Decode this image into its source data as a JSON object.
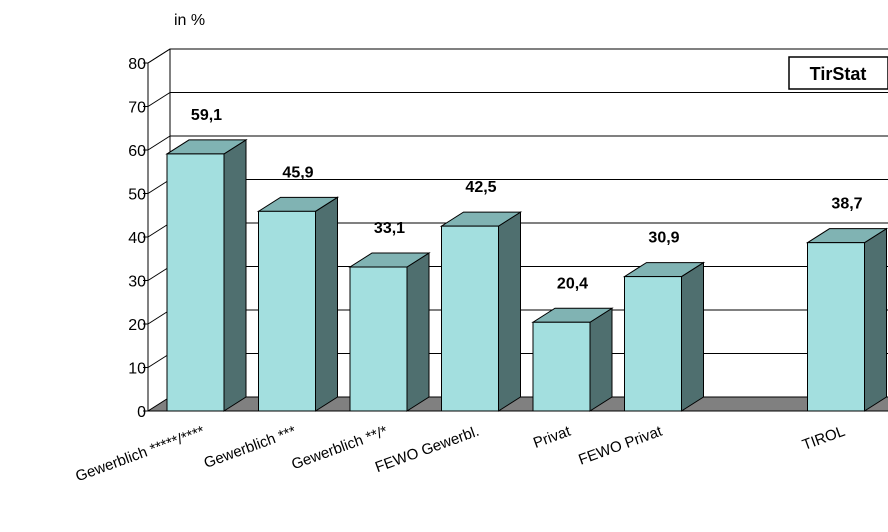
{
  "chart_data": {
    "type": "bar",
    "unit_label": "in %",
    "badge": "TirStat",
    "categories": [
      "Gewerblich *****/****",
      "Gewerblich ***",
      "Gewerblich **/*",
      "FEWO Gewerbl.",
      "Privat",
      "FEWO Privat",
      "",
      "TIROL"
    ],
    "values": [
      59.1,
      45.9,
      33.1,
      42.5,
      20.4,
      30.9,
      null,
      38.7
    ],
    "value_labels": [
      "59,1",
      "45,9",
      "33,1",
      "42,5",
      "20,4",
      "30,9",
      "",
      "38,7"
    ],
    "y_ticks": [
      "0",
      "10",
      "20",
      "30",
      "40",
      "50",
      "60",
      "70",
      "80"
    ],
    "ylim": [
      0,
      80
    ],
    "grid": true,
    "legend": "none",
    "style": "3d",
    "colors": {
      "front": "#a3dfdf",
      "side": "#4f6f6f",
      "top": "#80b3b3",
      "floor": "#808080",
      "stroke": "#000000"
    }
  }
}
